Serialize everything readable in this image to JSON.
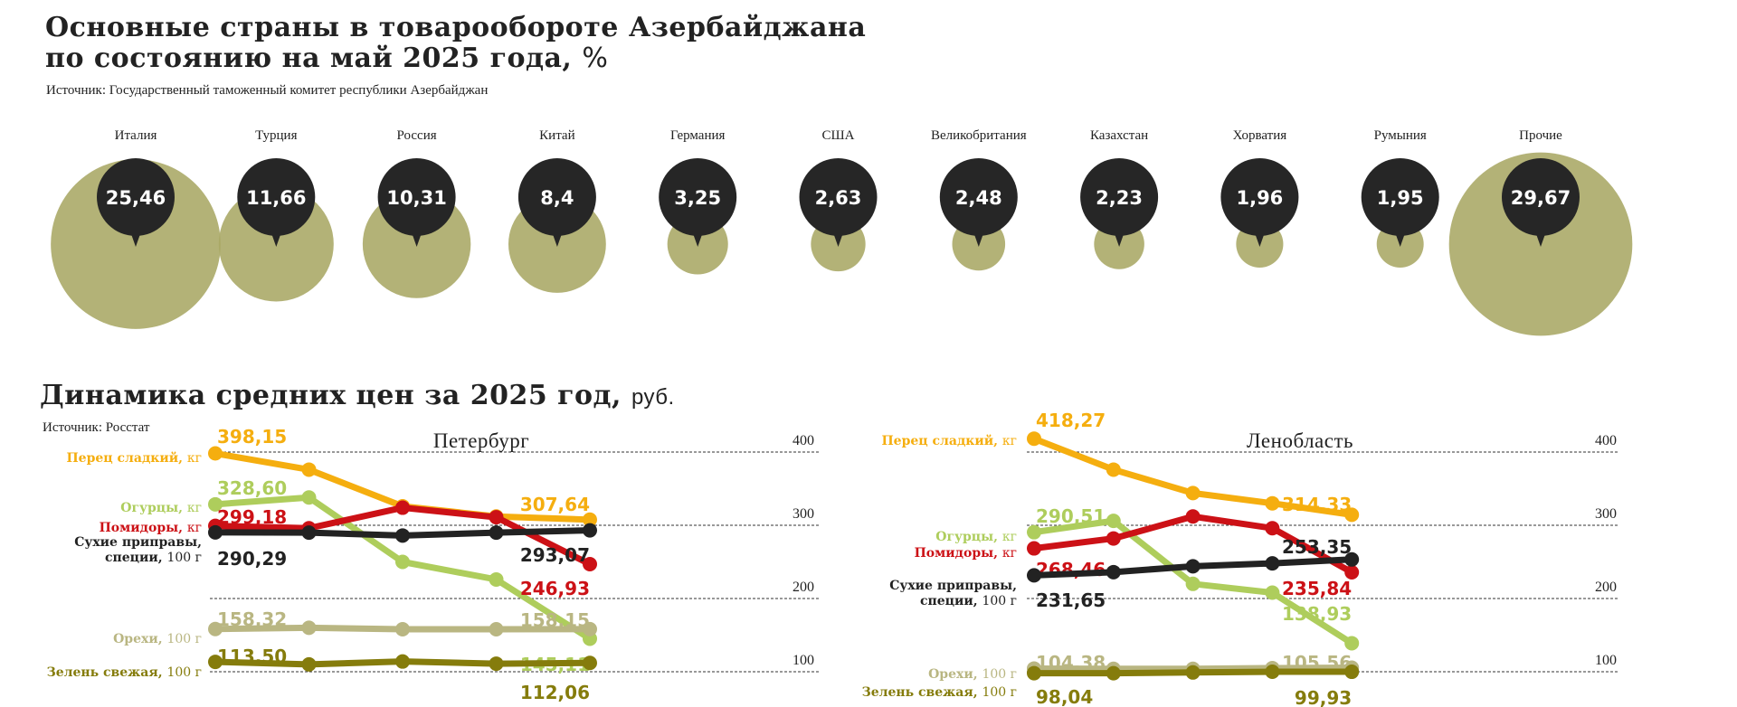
{
  "header": {
    "title_line1": "Основные страны в товарообороте Азербайджана",
    "title_line2": "по состоянию на май 2025 года,",
    "title_unit": "%",
    "source": "Источник: Государственный таможенный комитет республики Азербайджан"
  },
  "section2": {
    "title": "Динамика средних цен за 2025 год,",
    "unit": "руб.",
    "source": "Источник: Росстат"
  },
  "chart_data": [
    {
      "type": "bubble",
      "categories": [
        "Италия",
        "Турция",
        "Россия",
        "Китай",
        "Германия",
        "США",
        "Великобритания",
        "Казахстан",
        "Хорватия",
        "Румыния",
        "Прочие"
      ],
      "values": [
        25.46,
        11.66,
        10.31,
        8.4,
        3.25,
        2.63,
        2.48,
        2.23,
        1.96,
        1.95,
        29.67
      ],
      "value_labels": [
        "25,46",
        "11,66",
        "10,31",
        "8,4",
        "3,25",
        "2,63",
        "2,48",
        "2,23",
        "1,96",
        "1,95",
        "29,67"
      ]
    },
    {
      "type": "line",
      "title": "Петербург",
      "yticks": [
        "400",
        "300",
        "200",
        "100"
      ],
      "ylim": [
        100,
        400
      ],
      "series": [
        {
          "name": "Перец сладкий, кг",
          "color": "#f5ae0f",
          "values": [
            398.15,
            376,
            326,
            312,
            307.64
          ],
          "start_label": "398,15",
          "end_label": "307,64"
        },
        {
          "name": "Огурцы, кг",
          "color": "#aecd5c",
          "values": [
            328.6,
            338,
            250,
            226,
            145.11
          ],
          "start_label": "328,60",
          "end_label": "145,11"
        },
        {
          "name": "Помидоры, кг",
          "color": "#cc1116",
          "values": [
            299.18,
            296,
            324,
            311,
            246.93
          ],
          "start_label": "299,18",
          "end_label": "246,93"
        },
        {
          "name": "Сухие приправы, специи, 100 г",
          "color": "#222222",
          "values": [
            290.29,
            290,
            286,
            290,
            293.07
          ],
          "start_label": "290,29",
          "end_label": "293,07"
        },
        {
          "name": "Орехи, 100 г",
          "color": "#b9b682",
          "values": [
            158.32,
            160,
            158,
            158,
            158.15
          ],
          "start_label": "158,32",
          "end_label": "158,15"
        },
        {
          "name": "Зелень свежая, 100 г",
          "color": "#857c0c",
          "values": [
            113.5,
            110,
            114,
            111,
            112.06
          ],
          "start_label": "113,50",
          "end_label": "112,06"
        }
      ]
    },
    {
      "type": "line",
      "title": "Ленобласть",
      "yticks": [
        "400",
        "300",
        "200",
        "100"
      ],
      "ylim": [
        100,
        400
      ],
      "series": [
        {
          "name": "Перец сладкий, кг",
          "color": "#f5ae0f",
          "values": [
            418.27,
            376,
            344,
            330,
            314.33
          ],
          "start_label": "418,27",
          "end_label": "314,33"
        },
        {
          "name": "Огурцы, кг",
          "color": "#aecd5c",
          "values": [
            290.51,
            306,
            220,
            208,
            138.93
          ],
          "start_label": "290,51",
          "end_label": "138,93"
        },
        {
          "name": "Помидоры, кг",
          "color": "#cc1116",
          "values": [
            268.46,
            282,
            312,
            296,
            235.84
          ],
          "start_label": "268,46",
          "end_label": "235,84"
        },
        {
          "name": "Сухие приправы, специи, 100 г",
          "color": "#222222",
          "values": [
            231.65,
            236,
            244,
            248,
            253.35
          ],
          "start_label": "231,65",
          "end_label": "253,35"
        },
        {
          "name": "Орехи, 100 г",
          "color": "#b9b682",
          "values": [
            104.38,
            104,
            104,
            105,
            105.56
          ],
          "start_label": "104,38",
          "end_label": "105,56"
        },
        {
          "name": "Зелень свежая, 100 г",
          "color": "#857c0c",
          "values": [
            98.04,
            98,
            99,
            100,
            99.93
          ],
          "start_label": "98,04",
          "end_label": "99,93"
        }
      ]
    }
  ]
}
